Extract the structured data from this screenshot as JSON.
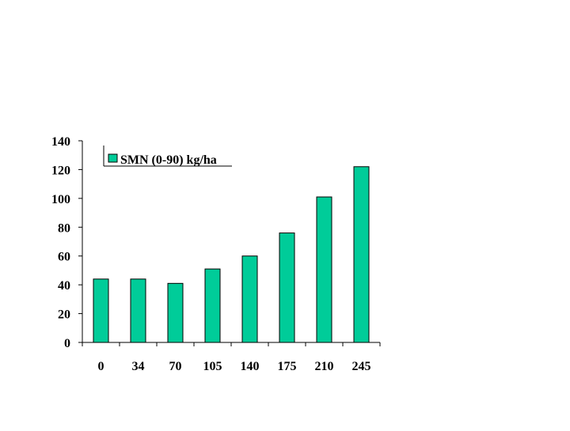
{
  "chart_data": {
    "type": "bar",
    "categories": [
      "0",
      "34",
      "70",
      "105",
      "140",
      "175",
      "210",
      "245"
    ],
    "series": [
      {
        "name": "SMN (0-90) kg/ha",
        "values": [
          44,
          44,
          41,
          51,
          60,
          76,
          101,
          122
        ],
        "color": "#00cc99"
      }
    ],
    "title": "",
    "xlabel": "",
    "ylabel": "",
    "ylim": [
      0,
      140
    ],
    "yticks": [
      "0",
      "20",
      "40",
      "60",
      "80",
      "100",
      "120",
      "140"
    ],
    "grid": false,
    "legend": "top-left"
  }
}
